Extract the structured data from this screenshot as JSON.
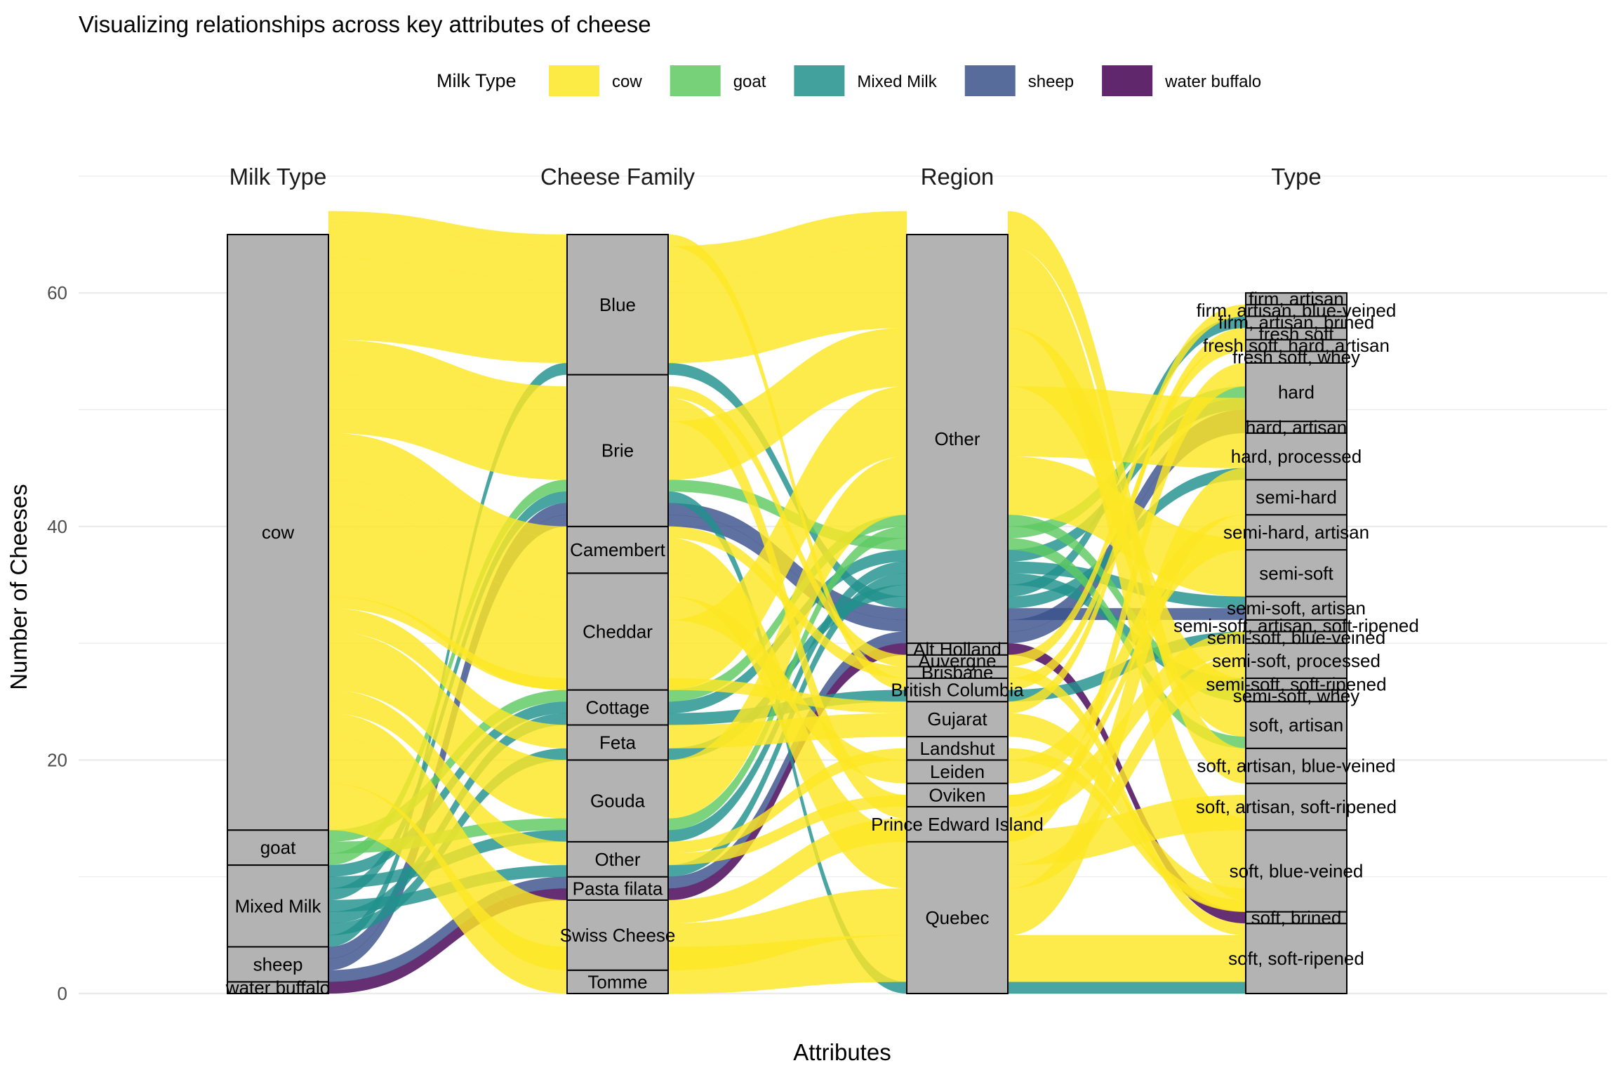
{
  "chart_data": {
    "type": "alluvial",
    "title": "Visualizing relationships across key attributes of cheese",
    "xlabel": "Attributes",
    "ylabel": "Number of Cheeses",
    "ylim": [
      0,
      70
    ],
    "yticks": [
      0,
      20,
      40,
      60
    ],
    "grid": true,
    "legend": {
      "title": "Milk Type",
      "placement": "top",
      "entries": [
        {
          "name": "cow",
          "color": "#FDE725"
        },
        {
          "name": "goat",
          "color": "#5EC962"
        },
        {
          "name": "Mixed Milk",
          "color": "#21918C"
        },
        {
          "name": "sheep",
          "color": "#3B528B"
        },
        {
          "name": "water buffalo",
          "color": "#440154"
        }
      ]
    },
    "axes": [
      {
        "name": "Milk Type",
        "strata": [
          {
            "label": "water buffalo",
            "count": 1
          },
          {
            "label": "sheep",
            "count": 3
          },
          {
            "label": "Mixed Milk",
            "count": 7
          },
          {
            "label": "goat",
            "count": 3
          },
          {
            "label": "cow",
            "count": 51
          }
        ]
      },
      {
        "name": "Cheese Family",
        "strata": [
          {
            "label": "Tomme",
            "count": 2
          },
          {
            "label": "Swiss Cheese",
            "count": 6
          },
          {
            "label": "Pasta filata",
            "count": 2
          },
          {
            "label": "Other",
            "count": 3
          },
          {
            "label": "Gouda",
            "count": 7
          },
          {
            "label": "Feta",
            "count": 3
          },
          {
            "label": "Cottage",
            "count": 3
          },
          {
            "label": "Cheddar",
            "count": 10
          },
          {
            "label": "Camembert",
            "count": 4
          },
          {
            "label": "Brie",
            "count": 13
          },
          {
            "label": "Blue",
            "count": 12
          }
        ]
      },
      {
        "name": "Region",
        "strata": [
          {
            "label": "Quebec",
            "count": 13
          },
          {
            "label": "Prince Edward Island",
            "count": 3
          },
          {
            "label": "Oviken",
            "count": 2
          },
          {
            "label": "Leiden",
            "count": 2
          },
          {
            "label": "Landshut",
            "count": 2
          },
          {
            "label": "Gujarat",
            "count": 3
          },
          {
            "label": "British Columbia",
            "count": 2
          },
          {
            "label": "Brisbane",
            "count": 1
          },
          {
            "label": "Auvergne",
            "count": 1
          },
          {
            "label": "Alt Holland",
            "count": 1
          },
          {
            "label": "Other",
            "count": 35
          }
        ]
      },
      {
        "name": "Type",
        "strata": [
          {
            "label": "soft, soft-ripened",
            "count": 6
          },
          {
            "label": "soft, brined",
            "count": 1
          },
          {
            "label": "soft, blue-veined",
            "count": 7
          },
          {
            "label": "soft, artisan, soft-ripened",
            "count": 4
          },
          {
            "label": "soft, artisan, blue-veined",
            "count": 3
          },
          {
            "label": "soft, artisan",
            "count": 4
          },
          {
            "label": "semi-soft, whey",
            "count": 1
          },
          {
            "label": "semi-soft, soft-ripened",
            "count": 1
          },
          {
            "label": "semi-soft, processed",
            "count": 3
          },
          {
            "label": "semi-soft, blue-veined",
            "count": 1
          },
          {
            "label": "semi-soft, artisan, soft-ripened",
            "count": 1
          },
          {
            "label": "semi-soft, artisan",
            "count": 2
          },
          {
            "label": "semi-soft",
            "count": 4
          },
          {
            "label": "semi-hard, artisan",
            "count": 3
          },
          {
            "label": "semi-hard",
            "count": 3
          },
          {
            "label": "hard, processed",
            "count": 4
          },
          {
            "label": "hard, artisan",
            "count": 1
          },
          {
            "label": "hard",
            "count": 5
          },
          {
            "label": "fresh soft, whey",
            "count": 1
          },
          {
            "label": "fresh soft, hard, artisan",
            "count": 1
          },
          {
            "label": "fresh soft",
            "count": 1
          },
          {
            "label": "firm, artisan, brined",
            "count": 1
          },
          {
            "label": "firm, artisan, blue-veined",
            "count": 1
          },
          {
            "label": "firm, artisan",
            "count": 1
          }
        ]
      }
    ],
    "flows": [
      {
        "milk": "water buffalo",
        "count": 1,
        "path": [
          "Pasta filata",
          "Alt Holland",
          "soft, brined"
        ]
      },
      {
        "milk": "sheep",
        "count": 1,
        "path": [
          "Pasta filata",
          "Other",
          "hard, artisan"
        ]
      },
      {
        "milk": "sheep",
        "count": 1,
        "path": [
          "Brie",
          "Other",
          "hard"
        ]
      },
      {
        "milk": "sheep",
        "count": 1,
        "path": [
          "Brie",
          "Other",
          "semi-soft, artisan"
        ]
      },
      {
        "milk": "Mixed Milk",
        "count": 1,
        "path": [
          "Blue",
          "Other",
          "hard, processed"
        ]
      },
      {
        "milk": "Mixed Milk",
        "count": 1,
        "path": [
          "Feta",
          "Other",
          "firm, artisan, brined"
        ]
      },
      {
        "milk": "Mixed Milk",
        "count": 1,
        "path": [
          "Cottage",
          "British Columbia",
          "semi-soft, blue-veined"
        ]
      },
      {
        "milk": "Mixed Milk",
        "count": 1,
        "path": [
          "Other",
          "Other",
          "semi-soft, soft-ripened"
        ]
      },
      {
        "milk": "Mixed Milk",
        "count": 1,
        "path": [
          "Brie",
          "Quebec",
          "soft, soft-ripened"
        ]
      },
      {
        "milk": "Mixed Milk",
        "count": 1,
        "path": [
          "Gouda",
          "Other",
          "semi-soft, artisan"
        ]
      },
      {
        "milk": "Mixed Milk",
        "count": 1,
        "path": [
          "Cottage",
          "Other",
          "hard"
        ]
      },
      {
        "milk": "goat",
        "count": 1,
        "path": [
          "Brie",
          "Other",
          "soft, artisan"
        ]
      },
      {
        "milk": "goat",
        "count": 1,
        "path": [
          "Gouda",
          "Other",
          "hard"
        ]
      },
      {
        "milk": "goat",
        "count": 1,
        "path": [
          "Cottage",
          "Other",
          "semi-soft, whey"
        ]
      },
      {
        "milk": "cow",
        "count": 4,
        "path": [
          "Tomme",
          "Quebec",
          "soft, soft-ripened"
        ]
      },
      {
        "milk": "cow",
        "count": 4,
        "path": [
          "Swiss Cheese",
          "Quebec",
          "semi-hard"
        ]
      },
      {
        "milk": "cow",
        "count": 2,
        "path": [
          "Swiss Cheese",
          "Prince Edward Island",
          "hard"
        ]
      },
      {
        "milk": "cow",
        "count": 1,
        "path": [
          "Other",
          "Oviken",
          "semi-hard, artisan"
        ]
      },
      {
        "milk": "cow",
        "count": 1,
        "path": [
          "Other",
          "Landshut",
          "soft, blue-veined"
        ]
      },
      {
        "milk": "cow",
        "count": 5,
        "path": [
          "Gouda",
          "Other",
          "semi-soft"
        ]
      },
      {
        "milk": "cow",
        "count": 2,
        "path": [
          "Feta",
          "Gujarat",
          "soft, brined"
        ]
      },
      {
        "milk": "cow",
        "count": 1,
        "path": [
          "Cottage",
          "Gujarat",
          "fresh soft"
        ]
      },
      {
        "milk": "cow",
        "count": 6,
        "path": [
          "Cheddar",
          "Other",
          "hard, processed"
        ]
      },
      {
        "milk": "cow",
        "count": 2,
        "path": [
          "Cheddar",
          "Leiden",
          "semi-hard, artisan"
        ]
      },
      {
        "milk": "cow",
        "count": 2,
        "path": [
          "Cheddar",
          "Quebec",
          "semi-soft, processed"
        ]
      },
      {
        "milk": "cow",
        "count": 3,
        "path": [
          "Camembert",
          "Quebec",
          "soft, artisan, soft-ripened"
        ]
      },
      {
        "milk": "cow",
        "count": 1,
        "path": [
          "Camembert",
          "Brisbane",
          "soft, soft-ripened"
        ]
      },
      {
        "milk": "cow",
        "count": 5,
        "path": [
          "Brie",
          "Other",
          "soft, artisan"
        ]
      },
      {
        "milk": "cow",
        "count": 2,
        "path": [
          "Brie",
          "Prince Edward Island",
          "semi-soft, processed"
        ]
      },
      {
        "milk": "cow",
        "count": 1,
        "path": [
          "Brie",
          "Auvergne",
          "firm, artisan, blue-veined"
        ]
      },
      {
        "milk": "cow",
        "count": 7,
        "path": [
          "Blue",
          "Other",
          "soft, blue-veined"
        ]
      },
      {
        "milk": "cow",
        "count": 3,
        "path": [
          "Blue",
          "Other",
          "soft, artisan, blue-veined"
        ]
      },
      {
        "milk": "cow",
        "count": 1,
        "path": [
          "Blue",
          "British Columbia",
          "fresh soft, hard, artisan"
        ]
      }
    ]
  }
}
